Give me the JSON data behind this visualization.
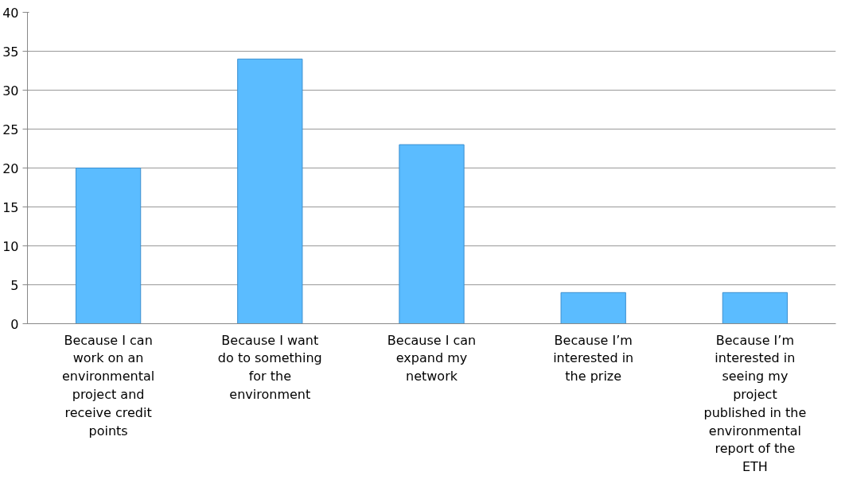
{
  "chart_data": {
    "type": "bar",
    "categories": [
      "Because I can work on an environmental project and receive credit points",
      "Because I want do to something for the environment",
      "Because I can expand my network",
      "Because I’m interested in the prize",
      "Because I’m interested in seeing my project published in the environmental report of the ETH"
    ],
    "values": [
      20,
      34,
      23,
      4,
      4
    ],
    "color": "#5bbcff",
    "ylim": [
      0,
      40
    ],
    "yticks": [
      0,
      5,
      10,
      15,
      20,
      25,
      30,
      35,
      40
    ],
    "grid": "y"
  }
}
